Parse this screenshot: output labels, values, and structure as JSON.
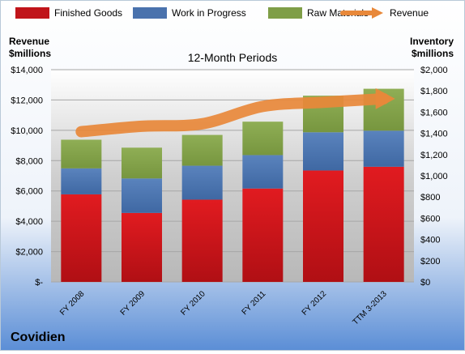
{
  "chart_data": {
    "type": "bar",
    "subtitle": "12-Month Periods",
    "left_axis_title": [
      "Revenue",
      "$millions"
    ],
    "right_axis_title": [
      "Inventory",
      "$millions"
    ],
    "categories": [
      "FY 2008",
      "FY 2009",
      "FY 2010",
      "FY 2011",
      "FY 2012",
      "TTM 3-2013"
    ],
    "stacked": true,
    "series": [
      {
        "name": "Finished Goods",
        "axis": "right",
        "color": "#c0141a",
        "values": [
          825,
          650,
          775,
          880,
          1050,
          1085
        ]
      },
      {
        "name": "Work in Progress",
        "axis": "right",
        "color": "#4a72ad",
        "values": [
          245,
          325,
          320,
          315,
          360,
          340
        ]
      },
      {
        "name": "Raw Materials",
        "axis": "right",
        "color": "#7f9e47",
        "values": [
          270,
          290,
          290,
          315,
          345,
          395
        ]
      }
    ],
    "line_series": {
      "name": "Revenue",
      "axis": "left",
      "color": "#e8883a",
      "values": [
        9910,
        10265,
        10430,
        11575,
        11850,
        12080
      ]
    },
    "left_axis": {
      "min": 0,
      "max": 14000,
      "step": 2000,
      "tick_labels": [
        "$-",
        "$2,000",
        "$4,000",
        "$6,000",
        "$8,000",
        "$10,000",
        "$12,000",
        "$14,000"
      ]
    },
    "right_axis": {
      "min": 0,
      "max": 2000,
      "step": 200,
      "tick_labels": [
        "$0",
        "$200",
        "$400",
        "$600",
        "$800",
        "$1,000",
        "$1,200",
        "$1,400",
        "$1,600",
        "$1,800",
        "$2,000"
      ]
    },
    "legend": {
      "placement": "top",
      "items": [
        "Finished Goods",
        "Work in Progress",
        "Raw Materials",
        "Revenue"
      ]
    },
    "grid": true
  },
  "company": "Covidien"
}
